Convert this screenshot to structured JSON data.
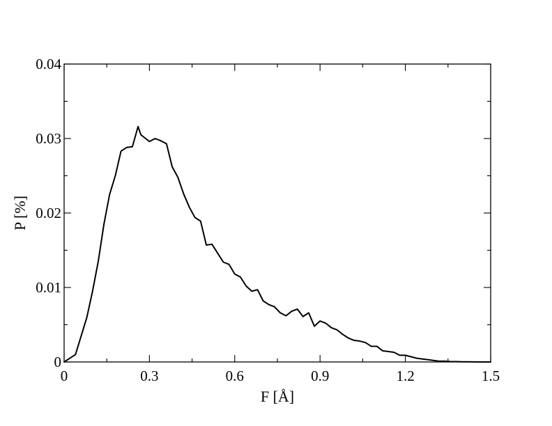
{
  "chart_data": {
    "type": "line",
    "title": "",
    "xlabel": "F [Å]",
    "ylabel": "P [%]",
    "xlim": [
      0,
      1.5
    ],
    "ylim": [
      0,
      0.04
    ],
    "x_ticks": [
      "0",
      "0.3",
      "0.6",
      "0.9",
      "1.2",
      "1.5"
    ],
    "y_ticks": [
      "0",
      "0.01",
      "0.02",
      "0.03",
      "0.04"
    ],
    "grid": false,
    "legend": "none",
    "series": [
      {
        "color": "#000000",
        "x": [
          0,
          0.02,
          0.04,
          0.06,
          0.08,
          0.1,
          0.12,
          0.14,
          0.16,
          0.18,
          0.2,
          0.22,
          0.24,
          0.26,
          0.27,
          0.28,
          0.3,
          0.32,
          0.34,
          0.36,
          0.38,
          0.4,
          0.42,
          0.44,
          0.46,
          0.48,
          0.5,
          0.52,
          0.54,
          0.56,
          0.58,
          0.6,
          0.62,
          0.64,
          0.66,
          0.68,
          0.7,
          0.72,
          0.74,
          0.76,
          0.78,
          0.8,
          0.82,
          0.84,
          0.86,
          0.88,
          0.9,
          0.92,
          0.94,
          0.96,
          0.98,
          1.0,
          1.02,
          1.04,
          1.06,
          1.08,
          1.1,
          1.12,
          1.14,
          1.16,
          1.18,
          1.2,
          1.22,
          1.24,
          1.26,
          1.28,
          1.3,
          1.32,
          1.34,
          1.36,
          1.38,
          1.4,
          1.42,
          1.44,
          1.46,
          1.48,
          1.5
        ],
        "y": [
          0,
          0.0005,
          0.001,
          0.0035,
          0.006,
          0.0095,
          0.0135,
          0.0185,
          0.0225,
          0.025,
          0.0283,
          0.0288,
          0.0289,
          0.0316,
          0.0305,
          0.0302,
          0.0296,
          0.03,
          0.0297,
          0.0293,
          0.0262,
          0.0248,
          0.0226,
          0.0208,
          0.0194,
          0.0189,
          0.0157,
          0.0158,
          0.0146,
          0.0134,
          0.0131,
          0.0118,
          0.0114,
          0.0102,
          0.0095,
          0.0097,
          0.0082,
          0.0077,
          0.0074,
          0.0066,
          0.0062,
          0.0068,
          0.0071,
          0.0061,
          0.0066,
          0.0048,
          0.0055,
          0.0052,
          0.0046,
          0.0043,
          0.0037,
          0.0032,
          0.0029,
          0.0028,
          0.0026,
          0.0021,
          0.0021,
          0.0015,
          0.0014,
          0.0013,
          0.0009,
          0.0009,
          0.0007,
          0.0005,
          0.0004,
          0.0003,
          0.0002,
          0.0001,
          0.0001,
          5e-05,
          5e-05,
          2e-05,
          2e-05,
          1e-05,
          0,
          0,
          0
        ]
      }
    ]
  }
}
